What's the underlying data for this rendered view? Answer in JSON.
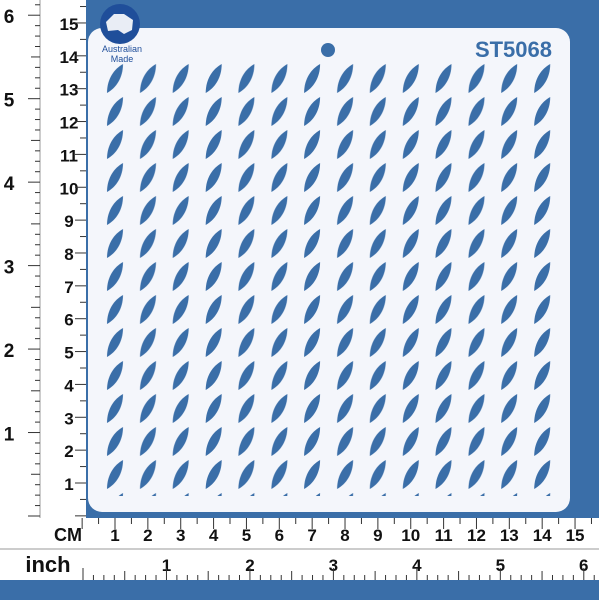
{
  "product_code": "ST5068",
  "logo": {
    "line1": "Australian",
    "line2": "Made"
  },
  "ruler": {
    "cm_label": "CM",
    "inch_label": "inch",
    "cm_numbers": [
      1,
      2,
      3,
      4,
      5,
      6,
      7,
      8,
      9,
      10,
      11,
      12,
      13,
      14,
      15
    ],
    "inch_numbers": [
      1,
      2,
      3,
      4,
      5,
      6
    ]
  }
}
